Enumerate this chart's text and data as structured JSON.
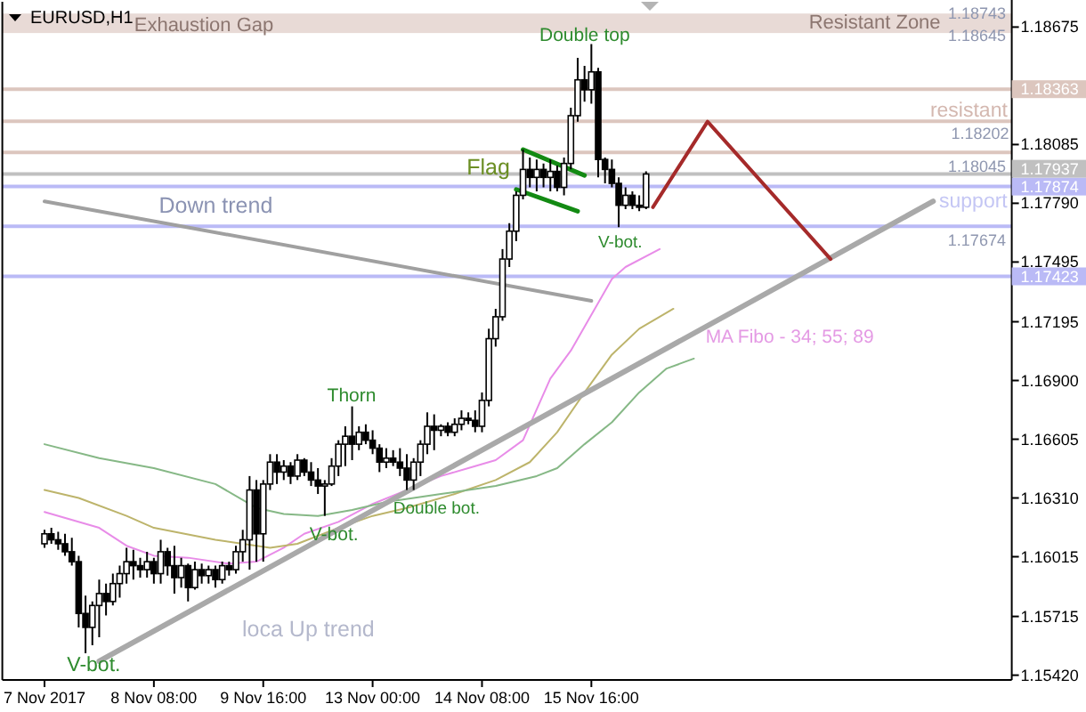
{
  "chart_data": {
    "type": "candlestick",
    "title": "EURUSD,H1",
    "categories": [
      "7 Nov 2017",
      null,
      null,
      null,
      null,
      null,
      null,
      null,
      null,
      null,
      null,
      null,
      null,
      null,
      null,
      null,
      "8 Nov 08:00",
      null,
      null,
      null,
      null,
      null,
      null,
      null,
      null,
      null,
      null,
      null,
      null,
      null,
      null,
      null,
      "9 Nov 16:00",
      null,
      null,
      null,
      null,
      null,
      null,
      null,
      null,
      null,
      null,
      null,
      null,
      null,
      null,
      null,
      "13 Nov 00:00",
      null,
      null,
      null,
      null,
      null,
      null,
      null,
      null,
      null,
      null,
      null,
      null,
      null,
      null,
      null,
      "14 Nov 08:00",
      null,
      null,
      null,
      null,
      null,
      null,
      null,
      null,
      null,
      null,
      null,
      null,
      null,
      null,
      null,
      "15 Nov 16:00",
      null,
      null,
      null,
      null,
      null,
      null,
      null,
      null,
      null,
      null,
      null,
      null,
      null,
      null,
      null,
      null,
      null,
      null,
      null,
      null,
      null,
      null,
      null,
      null,
      null,
      null,
      null,
      null,
      null,
      null,
      null,
      null,
      null,
      null,
      null,
      null,
      null,
      null,
      null,
      null,
      null,
      null,
      null,
      null,
      null,
      null,
      null,
      null,
      null,
      null,
      null,
      null,
      null,
      null,
      null,
      null,
      null,
      null,
      null,
      null,
      null
    ],
    "ohlc": [
      [
        1.1608,
        1.1615,
        1.1606,
        1.1613
      ],
      [
        1.1613,
        1.1616,
        1.1608,
        1.161
      ],
      [
        1.161,
        1.1614,
        1.1605,
        1.1608
      ],
      [
        1.1608,
        1.1613,
        1.1602,
        1.1604
      ],
      [
        1.1604,
        1.1611,
        1.1597,
        1.1599
      ],
      [
        1.1599,
        1.1602,
        1.1566,
        1.1573
      ],
      [
        1.1573,
        1.1582,
        1.1553,
        1.1566
      ],
      [
        1.1566,
        1.1579,
        1.1557,
        1.1577
      ],
      [
        1.1577,
        1.159,
        1.1561,
        1.1583
      ],
      [
        1.1583,
        1.1588,
        1.1572,
        1.1579
      ],
      [
        1.1579,
        1.1593,
        1.1577,
        1.1588
      ],
      [
        1.1588,
        1.1597,
        1.1581,
        1.1593
      ],
      [
        1.1593,
        1.1606,
        1.1588,
        1.1599
      ],
      [
        1.1599,
        1.1605,
        1.159,
        1.1597
      ],
      [
        1.1597,
        1.1601,
        1.1591,
        1.1595
      ],
      [
        1.1595,
        1.1604,
        1.1591,
        1.1599
      ],
      [
        1.1599,
        1.1601,
        1.1588,
        1.1593
      ],
      [
        1.1593,
        1.161,
        1.1588,
        1.1604
      ],
      [
        1.1604,
        1.1606,
        1.1592,
        1.1597
      ],
      [
        1.1597,
        1.1607,
        1.1583,
        1.1591
      ],
      [
        1.1591,
        1.1601,
        1.1586,
        1.1597
      ],
      [
        1.1597,
        1.1598,
        1.1579,
        1.1586
      ],
      [
        1.1586,
        1.1599,
        1.1585,
        1.1595
      ],
      [
        1.1595,
        1.1598,
        1.1588,
        1.1592
      ],
      [
        1.1592,
        1.1597,
        1.1588,
        1.1595
      ],
      [
        1.1595,
        1.1597,
        1.1586,
        1.159
      ],
      [
        1.159,
        1.1599,
        1.1588,
        1.1597
      ],
      [
        1.1597,
        1.1599,
        1.1592,
        1.1595
      ],
      [
        1.1595,
        1.1607,
        1.1593,
        1.1604
      ],
      [
        1.1604,
        1.1615,
        1.1599,
        1.161
      ],
      [
        1.161,
        1.1642,
        1.1595,
        1.1635
      ],
      [
        1.1635,
        1.164,
        1.1599,
        1.1613
      ],
      [
        1.1613,
        1.164,
        1.1599,
        1.1638
      ],
      [
        1.1638,
        1.1653,
        1.1635,
        1.1649
      ],
      [
        1.1649,
        1.1653,
        1.1638,
        1.1644
      ],
      [
        1.1644,
        1.165,
        1.164,
        1.1647
      ],
      [
        1.1647,
        1.1649,
        1.1638,
        1.1642
      ],
      [
        1.1642,
        1.1653,
        1.164,
        1.165
      ],
      [
        1.165,
        1.1651,
        1.1642,
        1.1644
      ],
      [
        1.1644,
        1.1649,
        1.1637,
        1.164
      ],
      [
        1.164,
        1.1646,
        1.1633,
        1.1637
      ],
      [
        1.1637,
        1.164,
        1.1622,
        1.1638
      ],
      [
        1.1638,
        1.1651,
        1.1637,
        1.1647
      ],
      [
        1.1647,
        1.166,
        1.1642,
        1.1658
      ],
      [
        1.1658,
        1.1667,
        1.1647,
        1.1662
      ],
      [
        1.1662,
        1.1677,
        1.165,
        1.1658
      ],
      [
        1.1658,
        1.1667,
        1.1655,
        1.1664
      ],
      [
        1.1664,
        1.1668,
        1.1658,
        1.166
      ],
      [
        1.166,
        1.1665,
        1.1653,
        1.1656
      ],
      [
        1.1656,
        1.1658,
        1.1644,
        1.1649
      ],
      [
        1.1649,
        1.1656,
        1.1646,
        1.1651
      ],
      [
        1.1651,
        1.1655,
        1.1647,
        1.1649
      ],
      [
        1.1649,
        1.1656,
        1.1642,
        1.1646
      ],
      [
        1.1646,
        1.1653,
        1.1635,
        1.164
      ],
      [
        1.164,
        1.1651,
        1.1635,
        1.1649
      ],
      [
        1.1649,
        1.166,
        1.1642,
        1.1658
      ],
      [
        1.1658,
        1.1674,
        1.1653,
        1.1667
      ],
      [
        1.1667,
        1.1673,
        1.1655,
        1.1665
      ],
      [
        1.1665,
        1.1668,
        1.1662,
        1.1667
      ],
      [
        1.1667,
        1.1669,
        1.1662,
        1.1664
      ],
      [
        1.1664,
        1.1671,
        1.1662,
        1.1668
      ],
      [
        1.1668,
        1.1675,
        1.1665,
        1.1671
      ],
      [
        1.1671,
        1.1674,
        1.1668,
        1.167
      ],
      [
        1.167,
        1.1675,
        1.1664,
        1.1667
      ],
      [
        1.1667,
        1.1684,
        1.1664,
        1.168
      ],
      [
        1.168,
        1.1716,
        1.1677,
        1.1711
      ],
      [
        1.1711,
        1.1726,
        1.1707,
        1.1722
      ],
      [
        1.1722,
        1.1756,
        1.172,
        1.1751
      ],
      [
        1.1751,
        1.1769,
        1.1747,
        1.1765
      ],
      [
        1.1765,
        1.1785,
        1.176,
        1.1783
      ],
      [
        1.1783,
        1.1806,
        1.1781,
        1.1796
      ],
      [
        1.1796,
        1.1802,
        1.1787,
        1.1792
      ],
      [
        1.1792,
        1.1801,
        1.1785,
        1.1796
      ],
      [
        1.1796,
        1.1799,
        1.1787,
        1.1792
      ],
      [
        1.1792,
        1.1801,
        1.1785,
        1.1795
      ],
      [
        1.1795,
        1.1798,
        1.1785,
        1.1787
      ],
      [
        1.1787,
        1.1802,
        1.1783,
        1.1799
      ],
      [
        1.1799,
        1.1827,
        1.1796,
        1.1823
      ],
      [
        1.1823,
        1.1852,
        1.182,
        1.1841
      ],
      [
        1.1841,
        1.1848,
        1.183,
        1.1836
      ],
      [
        1.1836,
        1.1859,
        1.1829,
        1.1845
      ],
      [
        1.1845,
        1.1847,
        1.1792,
        1.1801
      ],
      [
        1.1801,
        1.1802,
        1.1789,
        1.1796
      ],
      [
        1.1796,
        1.1801,
        1.1787,
        1.1789
      ],
      [
        1.1789,
        1.1792,
        1.1767,
        1.1778
      ],
      [
        1.1778,
        1.1787,
        1.1776,
        1.1783
      ],
      [
        1.1783,
        1.1785,
        1.1776,
        1.1778
      ],
      [
        1.1778,
        1.1783,
        1.1775,
        1.1777
      ],
      [
        1.1777,
        1.1795,
        1.1776,
        1.17937
      ],
      null,
      null,
      null,
      null,
      null,
      null,
      null,
      null,
      null,
      null,
      null,
      null,
      null,
      null,
      null,
      null,
      null,
      null,
      null,
      null,
      null,
      null,
      null,
      null,
      null,
      null,
      null,
      null,
      null,
      null,
      null,
      null,
      null,
      null,
      null,
      null,
      null,
      null,
      null,
      null,
      null,
      null,
      null,
      null,
      null,
      null,
      null,
      null,
      null,
      null,
      null,
      null,
      null
    ],
    "ylim": [
      1.15396,
      1.18802
    ],
    "yticks": [
      1.18675,
      1.18085,
      {
        "value": 1.1779,
        "label": "1.17790"
      },
      1.17495,
      1.17195,
      {
        "value": 1.169,
        "label": "1.16900"
      },
      1.16605,
      {
        "value": 1.1631,
        "label": "1.16310"
      },
      1.16015,
      1.15715,
      {
        "value": 1.1542,
        "label": "1.15420"
      }
    ],
    "series": [
      {
        "type": "line",
        "color": "#e88ce8",
        "values": [
          1.1624,
          null,
          null,
          null,
          null,
          null,
          null,
          null,
          1.1616,
          null,
          null,
          null,
          1.1607,
          null,
          null,
          null,
          1.1602,
          null,
          null,
          null,
          null,
          1.1601,
          null,
          null,
          null,
          null,
          null,
          1.1598,
          null,
          null,
          null,
          1.1599,
          null,
          null,
          null,
          1.1606,
          null,
          null,
          1.1613,
          null,
          null,
          null,
          null,
          1.1619,
          null,
          null,
          null,
          null,
          1.1628,
          null,
          null,
          null,
          null,
          1.1635,
          null,
          null,
          null,
          null,
          1.1642,
          null,
          null,
          null,
          null,
          1.1647,
          null,
          null,
          1.165,
          null,
          null,
          null,
          1.166,
          null,
          null,
          null,
          1.1691,
          null,
          null,
          1.1705,
          null,
          null,
          null,
          null,
          null,
          1.1741,
          null,
          1.1747,
          null,
          null,
          null,
          null,
          1.1756,
          null,
          null,
          null,
          null,
          null,
          null,
          null,
          null,
          null,
          null,
          null,
          null,
          null,
          null,
          null,
          null,
          null,
          null,
          null,
          null,
          null,
          null,
          null,
          null,
          null,
          null,
          null,
          null,
          null,
          null,
          null,
          null,
          null,
          null,
          null,
          null,
          null,
          null,
          null,
          null,
          null,
          null,
          null,
          null,
          null,
          null,
          null,
          null,
          null,
          null,
          null
        ]
      },
      {
        "type": "line",
        "color": "#bdb46b",
        "values": [
          1.1635,
          null,
          null,
          null,
          null,
          1.1631,
          null,
          null,
          null,
          null,
          null,
          null,
          1.1622,
          null,
          null,
          null,
          1.1616,
          null,
          null,
          null,
          null,
          null,
          null,
          null,
          null,
          1.161,
          null,
          null,
          null,
          null,
          null,
          null,
          null,
          1.1606,
          null,
          null,
          null,
          1.1608,
          null,
          null,
          null,
          null,
          null,
          1.1616,
          null,
          null,
          null,
          null,
          1.1622,
          null,
          null,
          null,
          null,
          1.1626,
          null,
          null,
          null,
          null,
          null,
          null,
          1.1633,
          null,
          null,
          null,
          null,
          null,
          1.164,
          null,
          null,
          null,
          null,
          1.1649,
          null,
          null,
          null,
          1.1664,
          null,
          null,
          null,
          1.1684,
          null,
          null,
          null,
          1.1703,
          null,
          null,
          null,
          1.1716,
          null,
          null,
          null,
          null,
          1.1726,
          null,
          null,
          null,
          null,
          null,
          null,
          null,
          null,
          null,
          null,
          null,
          null,
          null,
          null,
          null,
          null,
          null,
          null,
          null,
          null,
          null,
          null,
          null,
          null,
          null,
          null,
          null,
          null,
          null,
          null,
          null,
          null,
          null,
          null,
          null,
          null,
          null,
          null,
          null,
          null,
          null,
          null,
          null,
          null,
          null,
          null,
          null,
          null,
          null
        ]
      },
      {
        "type": "line",
        "color": "#86b886",
        "values": [
          1.1658,
          null,
          null,
          null,
          null,
          null,
          null,
          null,
          1.1651,
          null,
          null,
          null,
          null,
          null,
          null,
          null,
          1.1646,
          null,
          null,
          null,
          null,
          null,
          null,
          null,
          null,
          1.1638,
          null,
          null,
          null,
          null,
          null,
          1.1626,
          null,
          null,
          null,
          1.1623,
          null,
          null,
          null,
          null,
          1.1622,
          null,
          null,
          null,
          null,
          1.1625,
          null,
          null,
          null,
          null,
          1.1629,
          null,
          null,
          null,
          null,
          null,
          null,
          null,
          1.1633,
          null,
          null,
          null,
          null,
          null,
          null,
          null,
          1.1637,
          null,
          null,
          null,
          null,
          null,
          1.1642,
          null,
          null,
          1.1646,
          null,
          null,
          null,
          1.1658,
          null,
          null,
          null,
          1.1669,
          null,
          null,
          null,
          1.1684,
          null,
          null,
          null,
          1.1696,
          null,
          null,
          null,
          1.1701,
          null,
          null,
          null,
          null,
          null,
          null,
          null,
          null,
          null,
          null,
          null,
          null,
          null,
          null,
          null,
          null,
          null,
          null,
          null,
          null,
          null,
          null,
          null,
          null,
          null,
          null,
          null,
          null,
          null,
          null,
          null,
          null,
          null,
          null,
          null,
          null,
          null,
          null,
          null,
          null,
          null,
          null,
          null,
          null,
          null,
          null
        ]
      },
      {
        "type": "line",
        "color": "#a0a0a0",
        "values": [
          1.178,
          null,
          null,
          null,
          null,
          null,
          null,
          null,
          null,
          null,
          null,
          null,
          null,
          null,
          null,
          null,
          null,
          null,
          null,
          null,
          null,
          null,
          null,
          null,
          null,
          null,
          null,
          null,
          null,
          null,
          null,
          null,
          null,
          null,
          null,
          null,
          null,
          null,
          null,
          null,
          null,
          null,
          null,
          null,
          null,
          null,
          null,
          null,
          null,
          null,
          null,
          null,
          null,
          null,
          null,
          null,
          null,
          null,
          null,
          null,
          null,
          null,
          null,
          null,
          null,
          null,
          null,
          null,
          null,
          null,
          null,
          null,
          null,
          null,
          null,
          null,
          null,
          null,
          null,
          null,
          1.173,
          null,
          null,
          null,
          null,
          null,
          null,
          null,
          null,
          null,
          null,
          null,
          null,
          null,
          null,
          null,
          null,
          null,
          null,
          null,
          null,
          null,
          null,
          null,
          null,
          null,
          null,
          null,
          null,
          null,
          null,
          null,
          null,
          null,
          null,
          null,
          null,
          null,
          null,
          null,
          null,
          null,
          null,
          null,
          null,
          null,
          null,
          null,
          null,
          null,
          null,
          null,
          null,
          null,
          null,
          null,
          null,
          null,
          null,
          null,
          null,
          null
        ]
      },
      {
        "type": "line",
        "color": "#a9a9a9",
        "values": [
          null,
          null,
          null,
          null,
          null,
          null,
          null,
          null,
          1.1549,
          null,
          null,
          null,
          null,
          null,
          null,
          null,
          null,
          null,
          null,
          null,
          null,
          null,
          null,
          null,
          null,
          null,
          null,
          null,
          null,
          null,
          null,
          null,
          null,
          null,
          null,
          null,
          null,
          null,
          null,
          null,
          null,
          null,
          null,
          null,
          null,
          null,
          null,
          null,
          null,
          null,
          null,
          null,
          null,
          null,
          null,
          null,
          null,
          null,
          null,
          null,
          null,
          null,
          null,
          null,
          null,
          null,
          null,
          null,
          null,
          null,
          null,
          null,
          null,
          null,
          null,
          null,
          null,
          null,
          null,
          null,
          null,
          null,
          null,
          null,
          null,
          null,
          null,
          null,
          null,
          null,
          null,
          null,
          null,
          null,
          null,
          null,
          null,
          null,
          null,
          null,
          null,
          null,
          null,
          null,
          null,
          null,
          null,
          null,
          null,
          null,
          null,
          null,
          null,
          null,
          null,
          null,
          null,
          null,
          null,
          null,
          null,
          null,
          null,
          null,
          null,
          null,
          null,
          null,
          null,
          null,
          1.178,
          null,
          null,
          null,
          null,
          null,
          null,
          null,
          null,
          null,
          null,
          null
        ]
      },
      {
        "type": "line",
        "color": "#138a13",
        "values": [
          null,
          null,
          null,
          null,
          null,
          null,
          null,
          null,
          null,
          null,
          null,
          null,
          null,
          null,
          null,
          null,
          null,
          null,
          null,
          null,
          null,
          null,
          null,
          null,
          null,
          null,
          null,
          null,
          null,
          null,
          null,
          null,
          null,
          null,
          null,
          null,
          null,
          null,
          null,
          null,
          null,
          null,
          null,
          null,
          null,
          null,
          null,
          null,
          null,
          null,
          null,
          null,
          null,
          null,
          null,
          null,
          null,
          null,
          null,
          null,
          null,
          null,
          null,
          null,
          null,
          null,
          null,
          null,
          null,
          null,
          1.1806,
          null,
          null,
          null,
          null,
          null,
          null,
          null,
          null,
          1.1793,
          null,
          null,
          null,
          null,
          null,
          null,
          null,
          null,
          null,
          null,
          null,
          null,
          null,
          null,
          null,
          null,
          null,
          null,
          null,
          null,
          null,
          null,
          null,
          null,
          null,
          null,
          null,
          null,
          null,
          null,
          null,
          null,
          null,
          null,
          null,
          null,
          null,
          null,
          null,
          null,
          null,
          null,
          null,
          null,
          null,
          null,
          null,
          null,
          null,
          null,
          null,
          null,
          null,
          null,
          null,
          null,
          null,
          null,
          null,
          null,
          null,
          null
        ]
      },
      {
        "type": "line",
        "color": "#138a13",
        "values": [
          null,
          null,
          null,
          null,
          null,
          null,
          null,
          null,
          null,
          null,
          null,
          null,
          null,
          null,
          null,
          null,
          null,
          null,
          null,
          null,
          null,
          null,
          null,
          null,
          null,
          null,
          null,
          null,
          null,
          null,
          null,
          null,
          null,
          null,
          null,
          null,
          null,
          null,
          null,
          null,
          null,
          null,
          null,
          null,
          null,
          null,
          null,
          null,
          null,
          null,
          null,
          null,
          null,
          null,
          null,
          null,
          null,
          null,
          null,
          null,
          null,
          null,
          null,
          null,
          null,
          null,
          null,
          null,
          null,
          1.1786,
          null,
          null,
          null,
          null,
          null,
          null,
          null,
          null,
          1.1775,
          null,
          null,
          null,
          null,
          null,
          null,
          null,
          null,
          null,
          null,
          null,
          null,
          null,
          null,
          null,
          null,
          null,
          null,
          null,
          null,
          null,
          null,
          null,
          null,
          null,
          null,
          null,
          null,
          null,
          null,
          null,
          null,
          null,
          null,
          null,
          null,
          null,
          null,
          null,
          null,
          null,
          null,
          null,
          null,
          null,
          null,
          null,
          null,
          null,
          null,
          null,
          null,
          null,
          null,
          null,
          null,
          null,
          null,
          null,
          null,
          null,
          null,
          null
        ]
      },
      {
        "type": "line",
        "color": "#a52a2a",
        "values": [
          null,
          null,
          null,
          null,
          null,
          null,
          null,
          null,
          null,
          null,
          null,
          null,
          null,
          null,
          null,
          null,
          null,
          null,
          null,
          null,
          null,
          null,
          null,
          null,
          null,
          null,
          null,
          null,
          null,
          null,
          null,
          null,
          null,
          null,
          null,
          null,
          null,
          null,
          null,
          null,
          null,
          null,
          null,
          null,
          null,
          null,
          null,
          null,
          null,
          null,
          null,
          null,
          null,
          null,
          null,
          null,
          null,
          null,
          null,
          null,
          null,
          null,
          null,
          null,
          null,
          null,
          null,
          null,
          null,
          null,
          null,
          null,
          null,
          null,
          null,
          null,
          null,
          null,
          null,
          null,
          null,
          null,
          null,
          null,
          null,
          null,
          null,
          null,
          null,
          1.1777,
          null,
          null,
          null,
          null,
          null,
          null,
          null,
          1.182,
          null,
          null,
          null,
          null,
          null,
          null,
          null,
          null,
          null,
          null,
          null,
          null,
          null,
          null,
          null,
          null,
          null,
          1.1751,
          null,
          null,
          null,
          null,
          null,
          null,
          null,
          null,
          null,
          null,
          null,
          null,
          null,
          null,
          null,
          null,
          null,
          null,
          null,
          null,
          null,
          null,
          null,
          null,
          null,
          null
        ]
      }
    ],
    "ref_lines": [
      {
        "axis": "y",
        "value": 1.18363,
        "label": "1.18363",
        "color": "#dcc6be"
      },
      {
        "axis": "y",
        "value": 1.18202,
        "color": "#dcc6be"
      },
      {
        "axis": "y",
        "value": 1.18045,
        "color": "#dcc6be"
      },
      {
        "axis": "y",
        "value": 1.17937,
        "label": "1.17937",
        "color": "#c0c0c0"
      },
      {
        "axis": "y",
        "value": 1.17874,
        "label": "1.17874",
        "color": "#babaf6"
      },
      {
        "axis": "y",
        "value": 1.17674,
        "color": "#babaf6"
      },
      {
        "axis": "y",
        "value": 1.17423,
        "label": "1.17423",
        "color": "#babaf6"
      }
    ],
    "bands": [
      {
        "axis": "y",
        "from": 1.18645,
        "to": 1.18743,
        "label": "Resistant Zone",
        "color": "#e8dad6"
      }
    ],
    "annotations": [
      "Exhaustion Gap",
      {
        "text": "Double top",
        "y": 1.1859
      },
      "Flag",
      "Down trend",
      {
        "text": "V-bot.",
        "y": 1.1767
      },
      "Thorn",
      "V-bot.",
      {
        "text": "Double bot.",
        "y": 1.1635
      },
      "V-bot.",
      "loca Up trend",
      "MA Fibo - 34; 55; 89",
      "resistant",
      "1.18202",
      "1.18045",
      "support",
      "1.17674",
      "1.18743",
      "1.18645"
    ]
  }
}
